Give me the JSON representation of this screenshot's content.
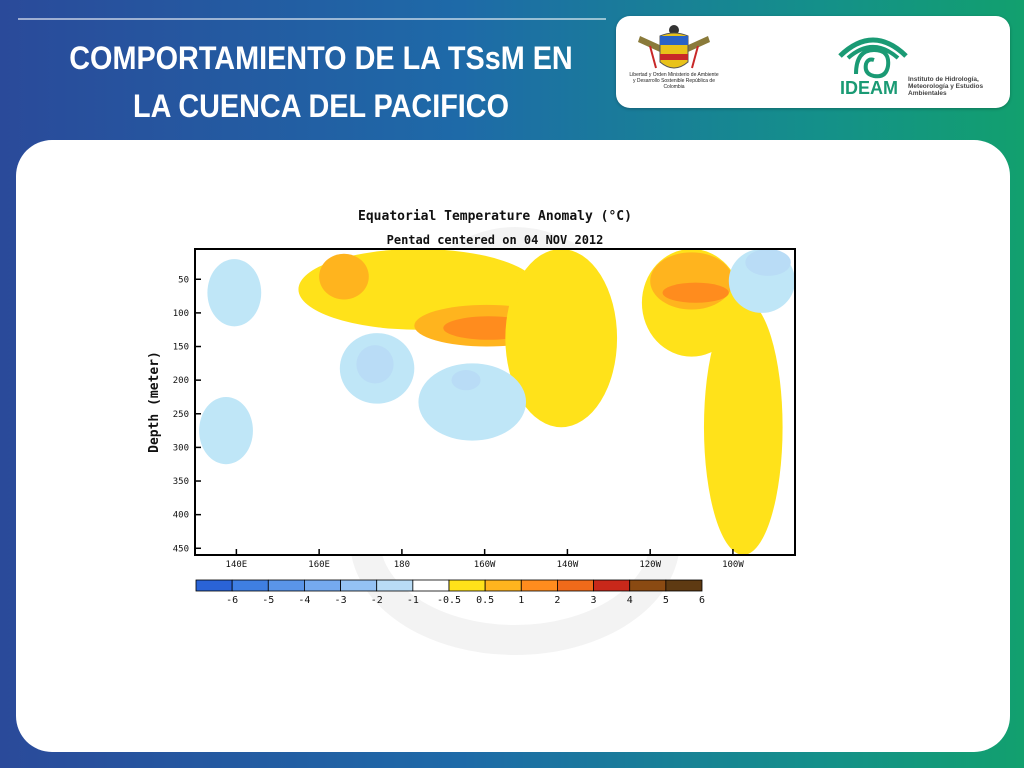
{
  "slide": {
    "title_line1": "COMPORTAMIENTO DE LA TSsM EN",
    "title_line2": "LA CUENCA DEL PACIFICO"
  },
  "logos": {
    "ministry": {
      "text": "Libertad y Orden Ministerio de Ambiente y Desarrollo Sostenible República de Colombia"
    },
    "ideam": {
      "name": "IDEAM",
      "description": "Instituto de Hidrología, Meteorología y Estudios Ambientales"
    }
  },
  "chart_data": {
    "type": "heatmap",
    "title": "Equatorial Temperature Anomaly (°C)",
    "subtitle": "Pentad centered on 04 NOV 2012",
    "xlabel": "",
    "ylabel": "Depth (meter)",
    "x_ticks": [
      "140E",
      "160E",
      "180",
      "160W",
      "140W",
      "120W",
      "100W"
    ],
    "x_tick_lon_east": [
      140,
      160,
      180,
      200,
      220,
      240,
      260
    ],
    "xlim_lon_east": [
      130,
      275
    ],
    "y_ticks": [
      50,
      100,
      150,
      200,
      250,
      300,
      350,
      400,
      450
    ],
    "ylim": [
      5,
      460
    ],
    "y_inverted": true,
    "colorbar": {
      "labels": [
        "-6",
        "-5",
        "-4",
        "-3",
        "-2",
        "-1",
        "-0.5",
        "0.5",
        "1",
        "2",
        "3",
        "4",
        "5",
        "6"
      ],
      "colors": [
        "#2a63d6",
        "#3f7fe2",
        "#5a95e8",
        "#75aaef",
        "#94c2f4",
        "#b9dcf6",
        "#ffffff",
        "#ffe21a",
        "#ffb41e",
        "#ff8c1e",
        "#f06a1a",
        "#c8281a",
        "#8a4a12",
        "#5e3a12"
      ]
    },
    "regions": [
      {
        "anomaly": 0.5,
        "lon": [
          155,
          213
        ],
        "depth": [
          5,
          125
        ]
      },
      {
        "anomaly": 1,
        "lon": [
          160,
          172
        ],
        "depth": [
          12,
          80
        ]
      },
      {
        "anomaly": 1,
        "lon": [
          183,
          218
        ],
        "depth": [
          88,
          150
        ]
      },
      {
        "anomaly": 2,
        "lon": [
          190,
          212
        ],
        "depth": [
          105,
          140
        ]
      },
      {
        "anomaly": 0.5,
        "lon": [
          205,
          232
        ],
        "depth": [
          5,
          270
        ]
      },
      {
        "anomaly": 0.5,
        "lon": [
          238,
          262
        ],
        "depth": [
          5,
          165
        ]
      },
      {
        "anomaly": 1,
        "lon": [
          240,
          260
        ],
        "depth": [
          10,
          95
        ]
      },
      {
        "anomaly": 2,
        "lon": [
          243,
          259
        ],
        "depth": [
          55,
          85
        ]
      },
      {
        "anomaly": 0.5,
        "lon": [
          253,
          272
        ],
        "depth": [
          80,
          460
        ]
      },
      {
        "anomaly": -0.5,
        "lon": [
          133,
          146
        ],
        "depth": [
          20,
          120
        ]
      },
      {
        "anomaly": -0.5,
        "lon": [
          131,
          144
        ],
        "depth": [
          225,
          325
        ]
      },
      {
        "anomaly": -0.5,
        "lon": [
          165,
          183
        ],
        "depth": [
          130,
          235
        ]
      },
      {
        "anomaly": -1,
        "lon": [
          169,
          178
        ],
        "depth": [
          148,
          205
        ]
      },
      {
        "anomaly": -0.5,
        "lon": [
          184,
          210
        ],
        "depth": [
          175,
          290
        ]
      },
      {
        "anomaly": -1,
        "lon": [
          192,
          199
        ],
        "depth": [
          185,
          215
        ]
      },
      {
        "anomaly": -0.5,
        "lon": [
          259,
          275
        ],
        "depth": [
          5,
          100
        ]
      },
      {
        "anomaly": -1,
        "lon": [
          263,
          274
        ],
        "depth": [
          5,
          45
        ]
      }
    ]
  }
}
